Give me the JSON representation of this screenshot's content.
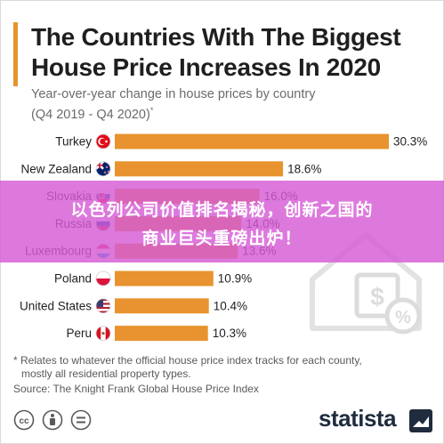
{
  "page": {
    "title": "The Countries With The Biggest House Price Increases In 2020",
    "subtitle_line1": "Year-over-year change in house prices by country",
    "subtitle_line2": "(Q4 2019 - Q4 2020)",
    "subtitle_mark": "*",
    "footnote_line1": "* Relates to whatever the official house price index tracks for each county,",
    "footnote_line2": "mostly all residential property types.",
    "source": "Source: The Knight Frank Global House Price Index",
    "brand": "statista",
    "overlay_line1": "以色列公司价值排名揭秘，创新之国的",
    "overlay_line2": "商业巨头重磅出炉！"
  },
  "colors": {
    "bar": "#e8932f",
    "accent": "#e8932f",
    "overlay": "#d65cd6",
    "text": "#1f1f1f",
    "muted": "#6b6b6b"
  },
  "chart_data": {
    "type": "bar",
    "orientation": "horizontal",
    "categories": [
      "Turkey",
      "New Zealand",
      "Slovakia",
      "Russia",
      "Luxembourg",
      "Poland",
      "United States",
      "Peru"
    ],
    "values": [
      30.3,
      18.6,
      16.0,
      14.0,
      13.6,
      10.9,
      10.4,
      10.3
    ],
    "value_labels": [
      "30.3%",
      "18.6%",
      "16.0%",
      "14.0%",
      "13.6%",
      "10.9%",
      "10.4%",
      "10.3%"
    ],
    "flags": [
      "turkey-flag",
      "new-zealand-flag",
      "slovakia-flag",
      "russia-flag",
      "luxembourg-flag",
      "poland-flag",
      "united-states-flag",
      "peru-flag"
    ],
    "unit": "%",
    "xlim": [
      0,
      30.3
    ],
    "grid": false,
    "legend": "none"
  }
}
